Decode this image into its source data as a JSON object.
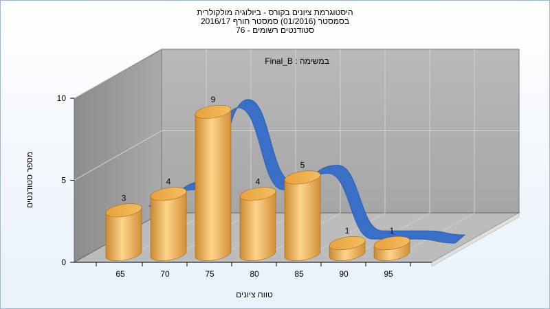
{
  "chart_data": {
    "type": "bar",
    "title_lines": [
      "היסטוגרמת ציונים בקורס - ביולוגיה מולקולרית",
      "בסמסטר  (01/2016)  סמסטר חורף  2016/17",
      "סטודנטים רשומים - 76"
    ],
    "xlabel": "טווח ציונים",
    "ylabel": "מספר סטודנטים",
    "annotation": "Final_B : במשימה",
    "categories": [
      "65",
      "70",
      "75",
      "80",
      "85",
      "90",
      "95"
    ],
    "values": [
      3,
      4,
      9,
      4,
      5,
      1,
      1
    ],
    "y_ticks": [
      "0",
      "5",
      "10"
    ],
    "ylim": [
      0,
      10
    ],
    "grid": true,
    "style": "3d-cylinders",
    "curve": "smoothed distribution ribbon",
    "colors": {
      "bar": "#e8a84a",
      "curve": "#3a6fc8",
      "wall": "#9a9a9a",
      "floor": "#bdbdbd"
    }
  }
}
